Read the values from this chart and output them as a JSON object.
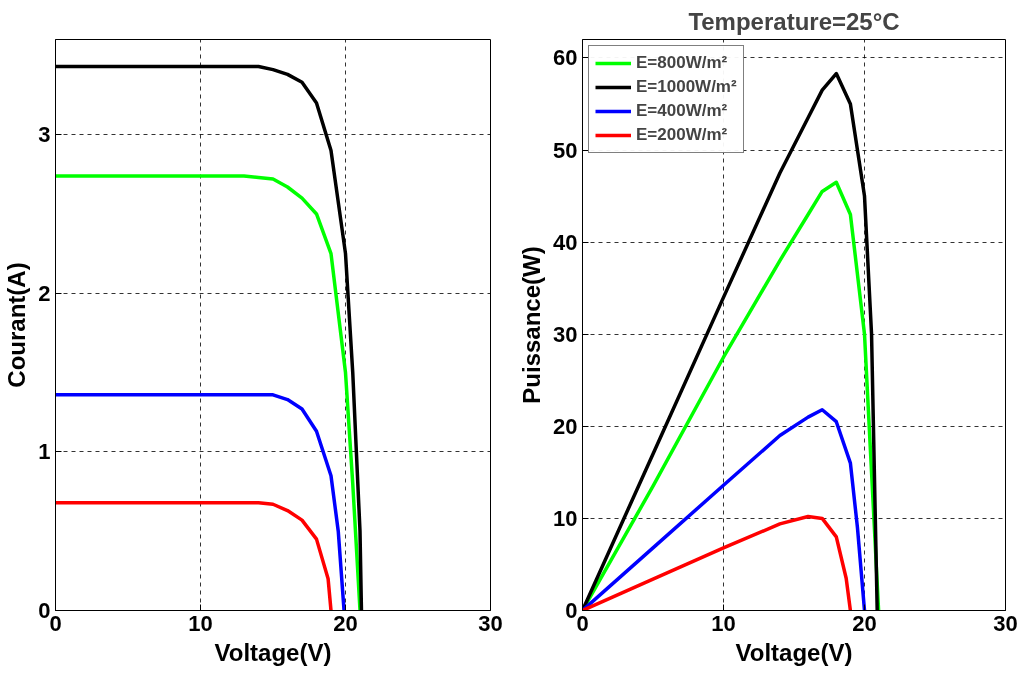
{
  "chart_data": [
    {
      "type": "line",
      "xlabel": "Voltage(V)",
      "ylabel": "Courant(A)",
      "xlim": [
        0,
        30
      ],
      "ylim": [
        0,
        3.6
      ],
      "xticks": [
        0,
        10,
        20,
        30
      ],
      "yticks": [
        0,
        1,
        2,
        3
      ],
      "grid": true,
      "line_style": "solid",
      "series": [
        {
          "color": "#00ff00",
          "x": [
            0,
            5,
            10,
            13,
            14,
            15,
            16,
            17,
            18,
            19,
            20,
            20.5,
            21
          ],
          "values": [
            2.74,
            2.74,
            2.74,
            2.74,
            2.73,
            2.72,
            2.67,
            2.6,
            2.5,
            2.25,
            1.5,
            0.8,
            0
          ]
        },
        {
          "color": "#000000",
          "x": [
            0,
            5,
            10,
            14,
            15,
            16,
            17,
            18,
            19,
            20,
            20.5,
            21,
            21.1
          ],
          "values": [
            3.43,
            3.43,
            3.43,
            3.43,
            3.41,
            3.38,
            3.33,
            3.2,
            2.9,
            2.25,
            1.5,
            0.5,
            0
          ]
        },
        {
          "color": "#0000ff",
          "x": [
            0,
            5,
            10,
            15,
            16,
            17,
            18,
            19,
            19.5,
            19.9
          ],
          "values": [
            1.36,
            1.36,
            1.36,
            1.36,
            1.33,
            1.27,
            1.13,
            0.85,
            0.5,
            0
          ]
        },
        {
          "color": "#ff0000",
          "x": [
            0,
            5,
            10,
            14,
            15,
            16,
            17,
            18,
            18.8,
            19.0
          ],
          "values": [
            0.68,
            0.68,
            0.68,
            0.68,
            0.67,
            0.63,
            0.57,
            0.45,
            0.2,
            0
          ]
        }
      ]
    },
    {
      "type": "line",
      "title": "Temperature=25°C",
      "xlabel": "Voltage(V)",
      "ylabel": "Puissance(W)",
      "xlim": [
        0,
        30
      ],
      "ylim": [
        0,
        62
      ],
      "xticks": [
        0,
        10,
        20,
        30
      ],
      "yticks": [
        0,
        10,
        20,
        30,
        40,
        50,
        60
      ],
      "grid": true,
      "legend": "top left",
      "line_style": "solid",
      "series": [
        {
          "name": "E=800W/m²",
          "color": "#00ff00",
          "x": [
            0,
            5,
            10,
            14,
            16,
            17,
            18,
            19,
            20,
            20.5,
            21
          ],
          "values": [
            0,
            13.5,
            27.5,
            38,
            43,
            45.5,
            46.5,
            43,
            30,
            15,
            0
          ]
        },
        {
          "name": "E=1000W/m²",
          "color": "#000000",
          "x": [
            0,
            5,
            10,
            14,
            16,
            17,
            18,
            19,
            20,
            20.5,
            20.9
          ],
          "values": [
            0,
            17,
            34,
            47.5,
            53.5,
            56.5,
            58.3,
            55,
            45,
            30,
            0
          ]
        },
        {
          "name": "E=400W/m²",
          "color": "#0000ff",
          "x": [
            0,
            5,
            10,
            14,
            16,
            17,
            18,
            19,
            19.5,
            20
          ],
          "values": [
            0,
            6.8,
            13.6,
            19,
            21,
            21.8,
            20.5,
            16,
            9,
            0
          ]
        },
        {
          "name": "E=200W/m²",
          "color": "#ff0000",
          "x": [
            0,
            5,
            10,
            14,
            16,
            17,
            18,
            18.7,
            19
          ],
          "values": [
            0,
            3.4,
            6.8,
            9.4,
            10.2,
            10,
            8,
            3.5,
            0
          ]
        }
      ]
    }
  ]
}
